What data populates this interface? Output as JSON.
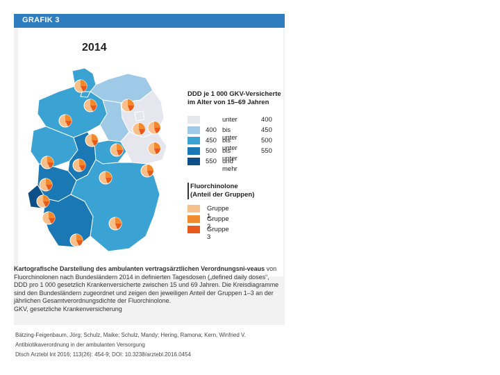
{
  "figure": {
    "header": "GRAFIK 3",
    "year": "2014",
    "legend": {
      "title": "DDD je 1 000 GKV-Versicherte\nim Alter von 15–69 Jahren",
      "classes": [
        {
          "c1": "",
          "c2": "unter",
          "c3": "400",
          "color": "#e6e6ef"
        },
        {
          "c1": "400",
          "c2": "bis unter",
          "c3": "450",
          "color": "#9ecae8"
        },
        {
          "c1": "450",
          "c2": "bis unter",
          "c3": "500",
          "color": "#3aa3d4"
        },
        {
          "c1": "500",
          "c2": "bis unter",
          "c3": "550",
          "color": "#1a78b4"
        },
        {
          "c1": "550",
          "c2": "und mehr",
          "c3": "",
          "color": "#0d4f86"
        }
      ]
    },
    "fluoro": {
      "title": "Fluorchinolone\n(Anteil der Gruppen)",
      "groups": [
        {
          "label": "Gruppe 1",
          "color": "#f7c08a"
        },
        {
          "label": "Gruppe 2",
          "color": "#f08a2c"
        },
        {
          "label": "Gruppe 3",
          "color": "#e85a1b"
        }
      ]
    },
    "caption": {
      "bold": "Kartografische Darstellung des ambulanten vertragsärztlichen Verordnungsni-veaus",
      "text": " von Fluorchinolonen nach Bundesländern 2014 in definierten Tagesdosen („defined daily doses“, DDD pro 1 000 gesetzlich Krankenversicherte zwischen 15 und 69 Jahren. Die Kreisdiagramme sind den Bundesländern zugeordnet und zeigen den jeweiligen Anteil der Gruppen 1–3 an der jährlichen Gesamtverordnungsdichte der Fluorchinolone.",
      "abbr": "GKV, gesetzliche Krankenversicherung"
    }
  },
  "citation": {
    "line1": "Bätzing-Feigenbaum, Jörg; Schulz, Maike; Schulz, Mandy; Hering, Ramona; Kern, Winfried V.",
    "line2": "Antibiotikaverordnung in der ambulanten Versorgung",
    "line3": "Dtsch Arztebl Int 2016; 113(26): 454-9; DOI: 10.3238/arztebl.2016.0454"
  }
}
